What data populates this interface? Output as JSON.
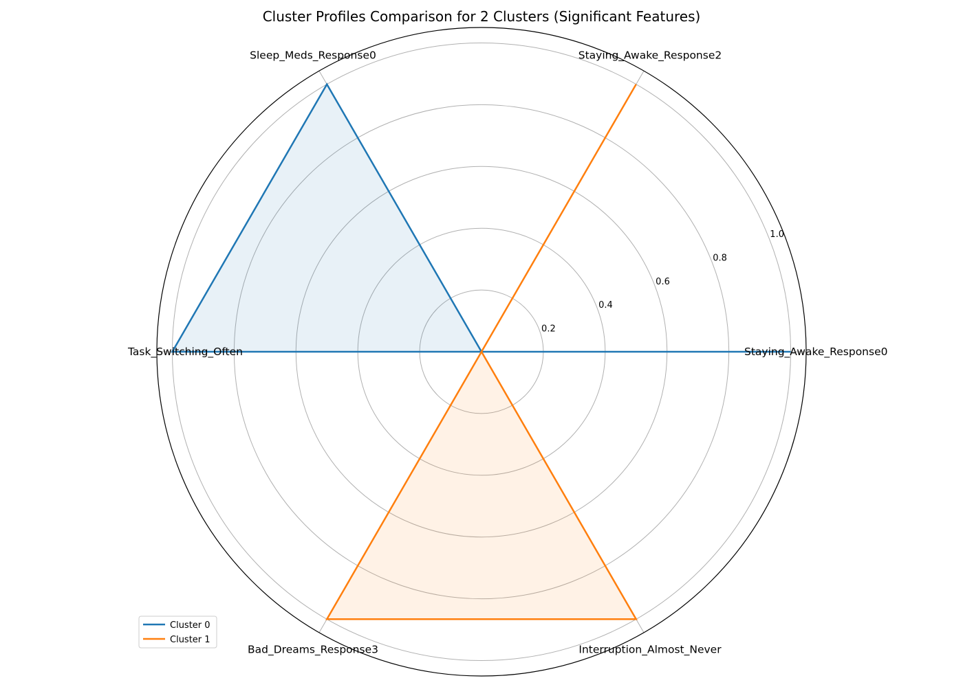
{
  "chart_data": {
    "type": "radar",
    "title": "Cluster Profiles Comparison for 2 Clusters (Significant Features)",
    "axes": [
      "Staying_Awake_Response0",
      "Staying_Awake_Response2",
      "Sleep_Meds_Response0",
      "Task_Switching_Often",
      "Bad_Dreams_Response3",
      "Interruption_Almost_Never"
    ],
    "rlim": [
      0,
      1.05
    ],
    "r_ticks": [
      0.2,
      0.4,
      0.6,
      0.8,
      1.0
    ],
    "r_tick_labels": [
      "0.2",
      "0.4",
      "0.6",
      "0.8",
      "1.0"
    ],
    "grid": true,
    "legend_position": "lower-left",
    "series": [
      {
        "name": "Cluster 0",
        "color": "#1f77b4",
        "values": [
          1.0,
          0.0,
          1.0,
          1.0,
          0.0,
          0.0
        ]
      },
      {
        "name": "Cluster 1",
        "color": "#ff7f0e",
        "values": [
          0.0,
          1.0,
          0.0,
          0.0,
          1.0,
          1.0
        ]
      }
    ]
  }
}
